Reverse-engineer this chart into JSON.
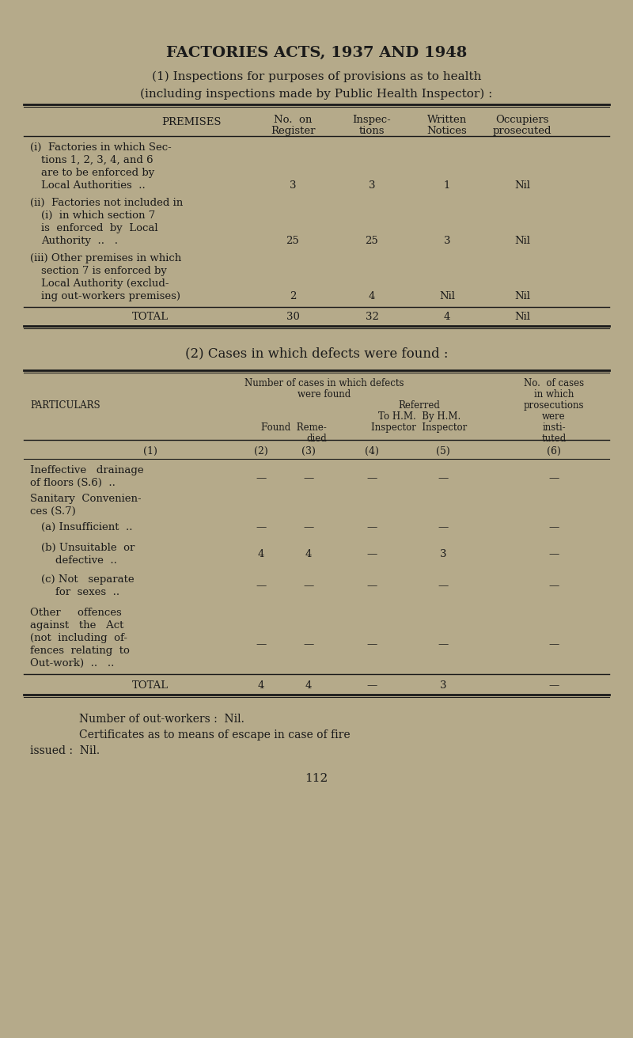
{
  "bg_color": "#b5aa8a",
  "text_color": "#1a1a1a",
  "title": "FACTORIES ACTS, 1937 AND 1948",
  "subtitle1": "(1) Inspections for purposes of provisions as to health",
  "subtitle2": "(including inspections made by Public Health Inspector) :",
  "footer1": "Number of out-workers :  Nil.",
  "footer2": "Certificates as to means of escape in case of fire",
  "footer3": "issued :  Nil.",
  "page_number": "112",
  "line_color": "#1a1a1a"
}
